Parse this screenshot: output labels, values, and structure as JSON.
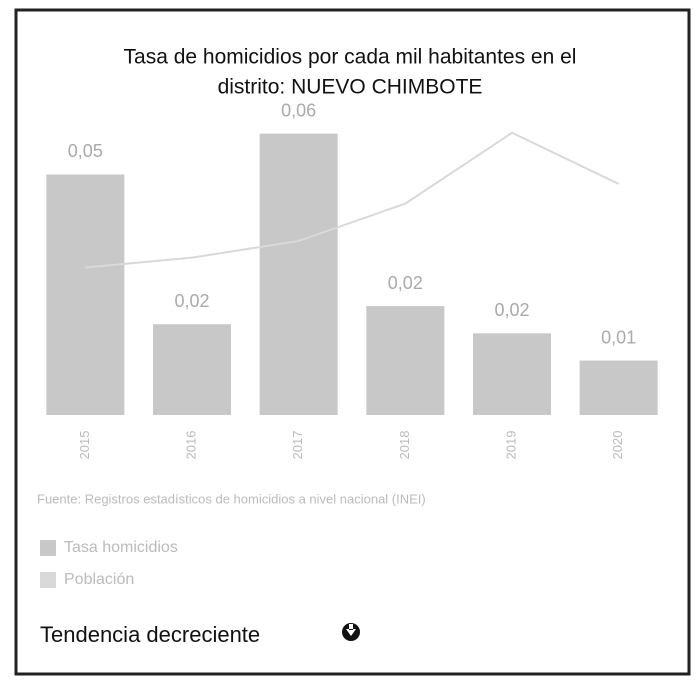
{
  "chart_data": {
    "type": "bar",
    "title": "Tasa de homicidios por cada mil habitantes en el",
    "subtitle": "distrito: NUEVO CHIMBOTE",
    "categories": [
      "2015",
      "2016",
      "2017",
      "2018",
      "2019",
      "2020"
    ],
    "series": [
      {
        "name": "Tasa homicidios",
        "color": "#c8c8c8",
        "values": [
          0.053,
          0.02,
          0.062,
          0.024,
          0.018,
          0.012
        ],
        "value_labels": [
          "0,05",
          "0,02",
          "0,06",
          "0,02",
          "0,02",
          "0,01"
        ]
      },
      {
        "name": "Población",
        "color": "#d9d9d9",
        "type": "line",
        "axis": "y2",
        "values": [
          150,
          160,
          177,
          215,
          287,
          235
        ]
      }
    ],
    "ylim": [
      0,
      0.065
    ],
    "y2lim": [
      0,
      300
    ],
    "source": "Fuente: Registros estadísticos de homicidios a nivel nacional (INEI)",
    "footer": "Tendencia decreciente"
  }
}
